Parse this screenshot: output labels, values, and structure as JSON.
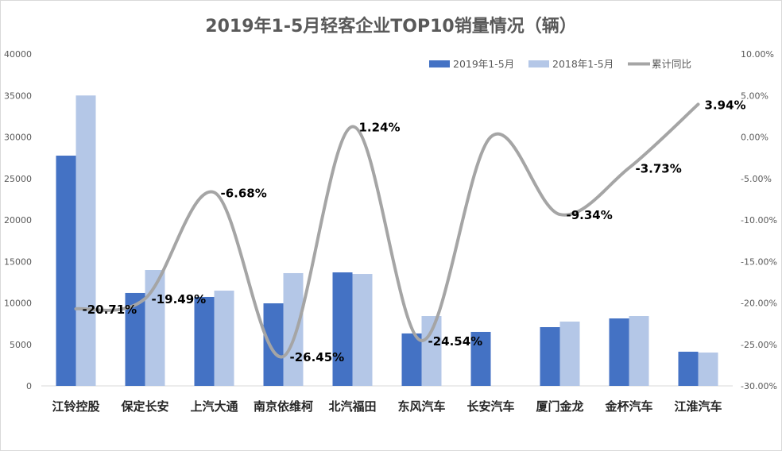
{
  "chart_data": {
    "type": "bar",
    "title": "2019年1-5月轻客企业TOP10销量情况（辆）",
    "categories": [
      "江铃控股",
      "保定长安",
      "上汽大通",
      "南京依维柯",
      "北汽福田",
      "东风汽车",
      "长安汽车",
      "厦门金龙",
      "金杯汽车",
      "江淮汽车"
    ],
    "series": [
      {
        "name": "2019年1-5月",
        "type": "bar",
        "axis": "left",
        "color": "#4472c4",
        "values": [
          27750,
          11200,
          10720,
          9950,
          13680,
          6320,
          6510,
          7080,
          8130,
          4120
        ]
      },
      {
        "name": "2018年1-5月",
        "type": "bar",
        "axis": "left",
        "color": "#b4c7e7",
        "values": [
          35000,
          13970,
          11480,
          13590,
          13490,
          8420,
          null,
          7750,
          8420,
          4020
        ]
      },
      {
        "name": "累计同比",
        "type": "line",
        "axis": "right",
        "color": "#a5a5a5",
        "values": [
          -20.71,
          -19.49,
          -6.68,
          -26.45,
          1.24,
          -24.54,
          0.0,
          -9.34,
          -3.73,
          3.94
        ],
        "labels": [
          "-20.71%",
          "-19.49%",
          "-6.68%",
          "-26.45%",
          "1.24%",
          "-24.54%",
          null,
          "-9.34%",
          "-3.73%",
          "3.94%"
        ]
      }
    ],
    "y_left": {
      "range": [
        0,
        40000
      ],
      "ticks": [
        "0",
        "5000",
        "10000",
        "15000",
        "20000",
        "25000",
        "30000",
        "35000",
        "40000"
      ]
    },
    "y_right": {
      "range": [
        -30,
        10
      ],
      "ticks": [
        "-30.00%",
        "-25.00%",
        "-20.00%",
        "-15.00%",
        "-10.00%",
        "-5.00%",
        "0.00%",
        "5.00%",
        "10.00%"
      ]
    },
    "legend_position": "top-right",
    "grid": false
  }
}
